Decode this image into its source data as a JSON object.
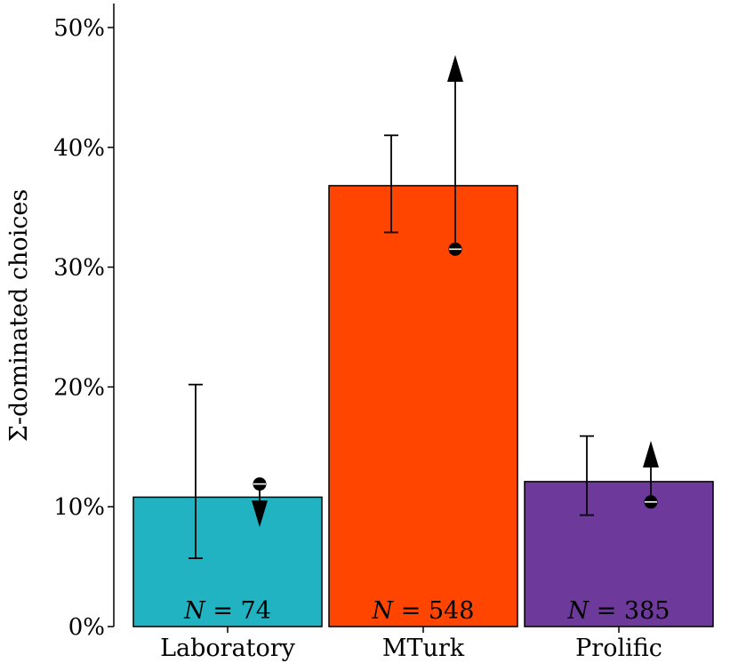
{
  "chart_data": {
    "type": "bar",
    "ylabel": "Σ-dominated choices",
    "xlabel": "",
    "title": "",
    "ylim": [
      0,
      52
    ],
    "yticks": [
      0,
      10,
      20,
      30,
      40,
      50
    ],
    "ytick_labels": [
      "0%",
      "10%",
      "20%",
      "30%",
      "40%",
      "50%"
    ],
    "grid": false,
    "categories": [
      "Laboratory",
      "MTurk",
      "Prolific"
    ],
    "values": [
      10.8,
      36.8,
      12.1
    ],
    "colors": [
      "#22b3c3",
      "#ff4500",
      "#6d399a"
    ],
    "n_prefix": "N",
    "n_values": [
      "74",
      "548",
      "385"
    ],
    "error_bars": [
      {
        "low": 5.7,
        "high": 20.2
      },
      {
        "low": 32.9,
        "high": 41.0
      },
      {
        "low": 9.3,
        "high": 15.9
      }
    ],
    "shift_arrows": [
      {
        "from": 11.9,
        "to": 8.3,
        "direction": "down"
      },
      {
        "from": 31.5,
        "to": 47.7,
        "direction": "up"
      },
      {
        "from": 10.4,
        "to": 15.5,
        "direction": "up"
      }
    ]
  }
}
